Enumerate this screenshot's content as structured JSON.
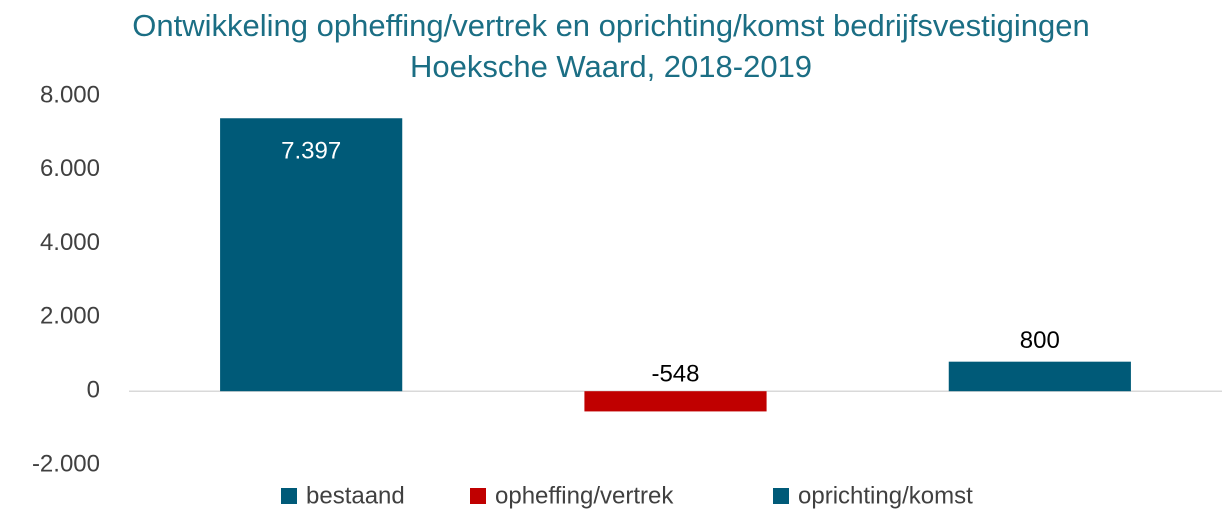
{
  "chart_data": {
    "type": "bar",
    "title": [
      "Ontwikkeling opheffing/vertrek en oprichting/komst bedrijfsvestigingen",
      "Hoeksche Waard, 2018-2019"
    ],
    "series": [
      {
        "name": "bestaand",
        "color": "#005a78",
        "values": [
          7397
        ],
        "value_labels": [
          "7.397"
        ]
      },
      {
        "name": "opheffing/vertrek",
        "color": "#c00000",
        "values": [
          -548
        ]
      },
      {
        "name": "oprichting/komst",
        "color": "#005a78",
        "values": [
          800
        ]
      }
    ],
    "ylim": [
      -2000,
      8000
    ],
    "yticks": [
      {
        "value": -2000,
        "label": "-2.000"
      },
      0,
      {
        "value": 2000,
        "label": "2.000"
      },
      {
        "value": 4000,
        "label": "4.000"
      },
      {
        "value": 6000,
        "label": "6.000"
      },
      {
        "value": 8000,
        "label": "8.000"
      }
    ],
    "grid": false
  }
}
